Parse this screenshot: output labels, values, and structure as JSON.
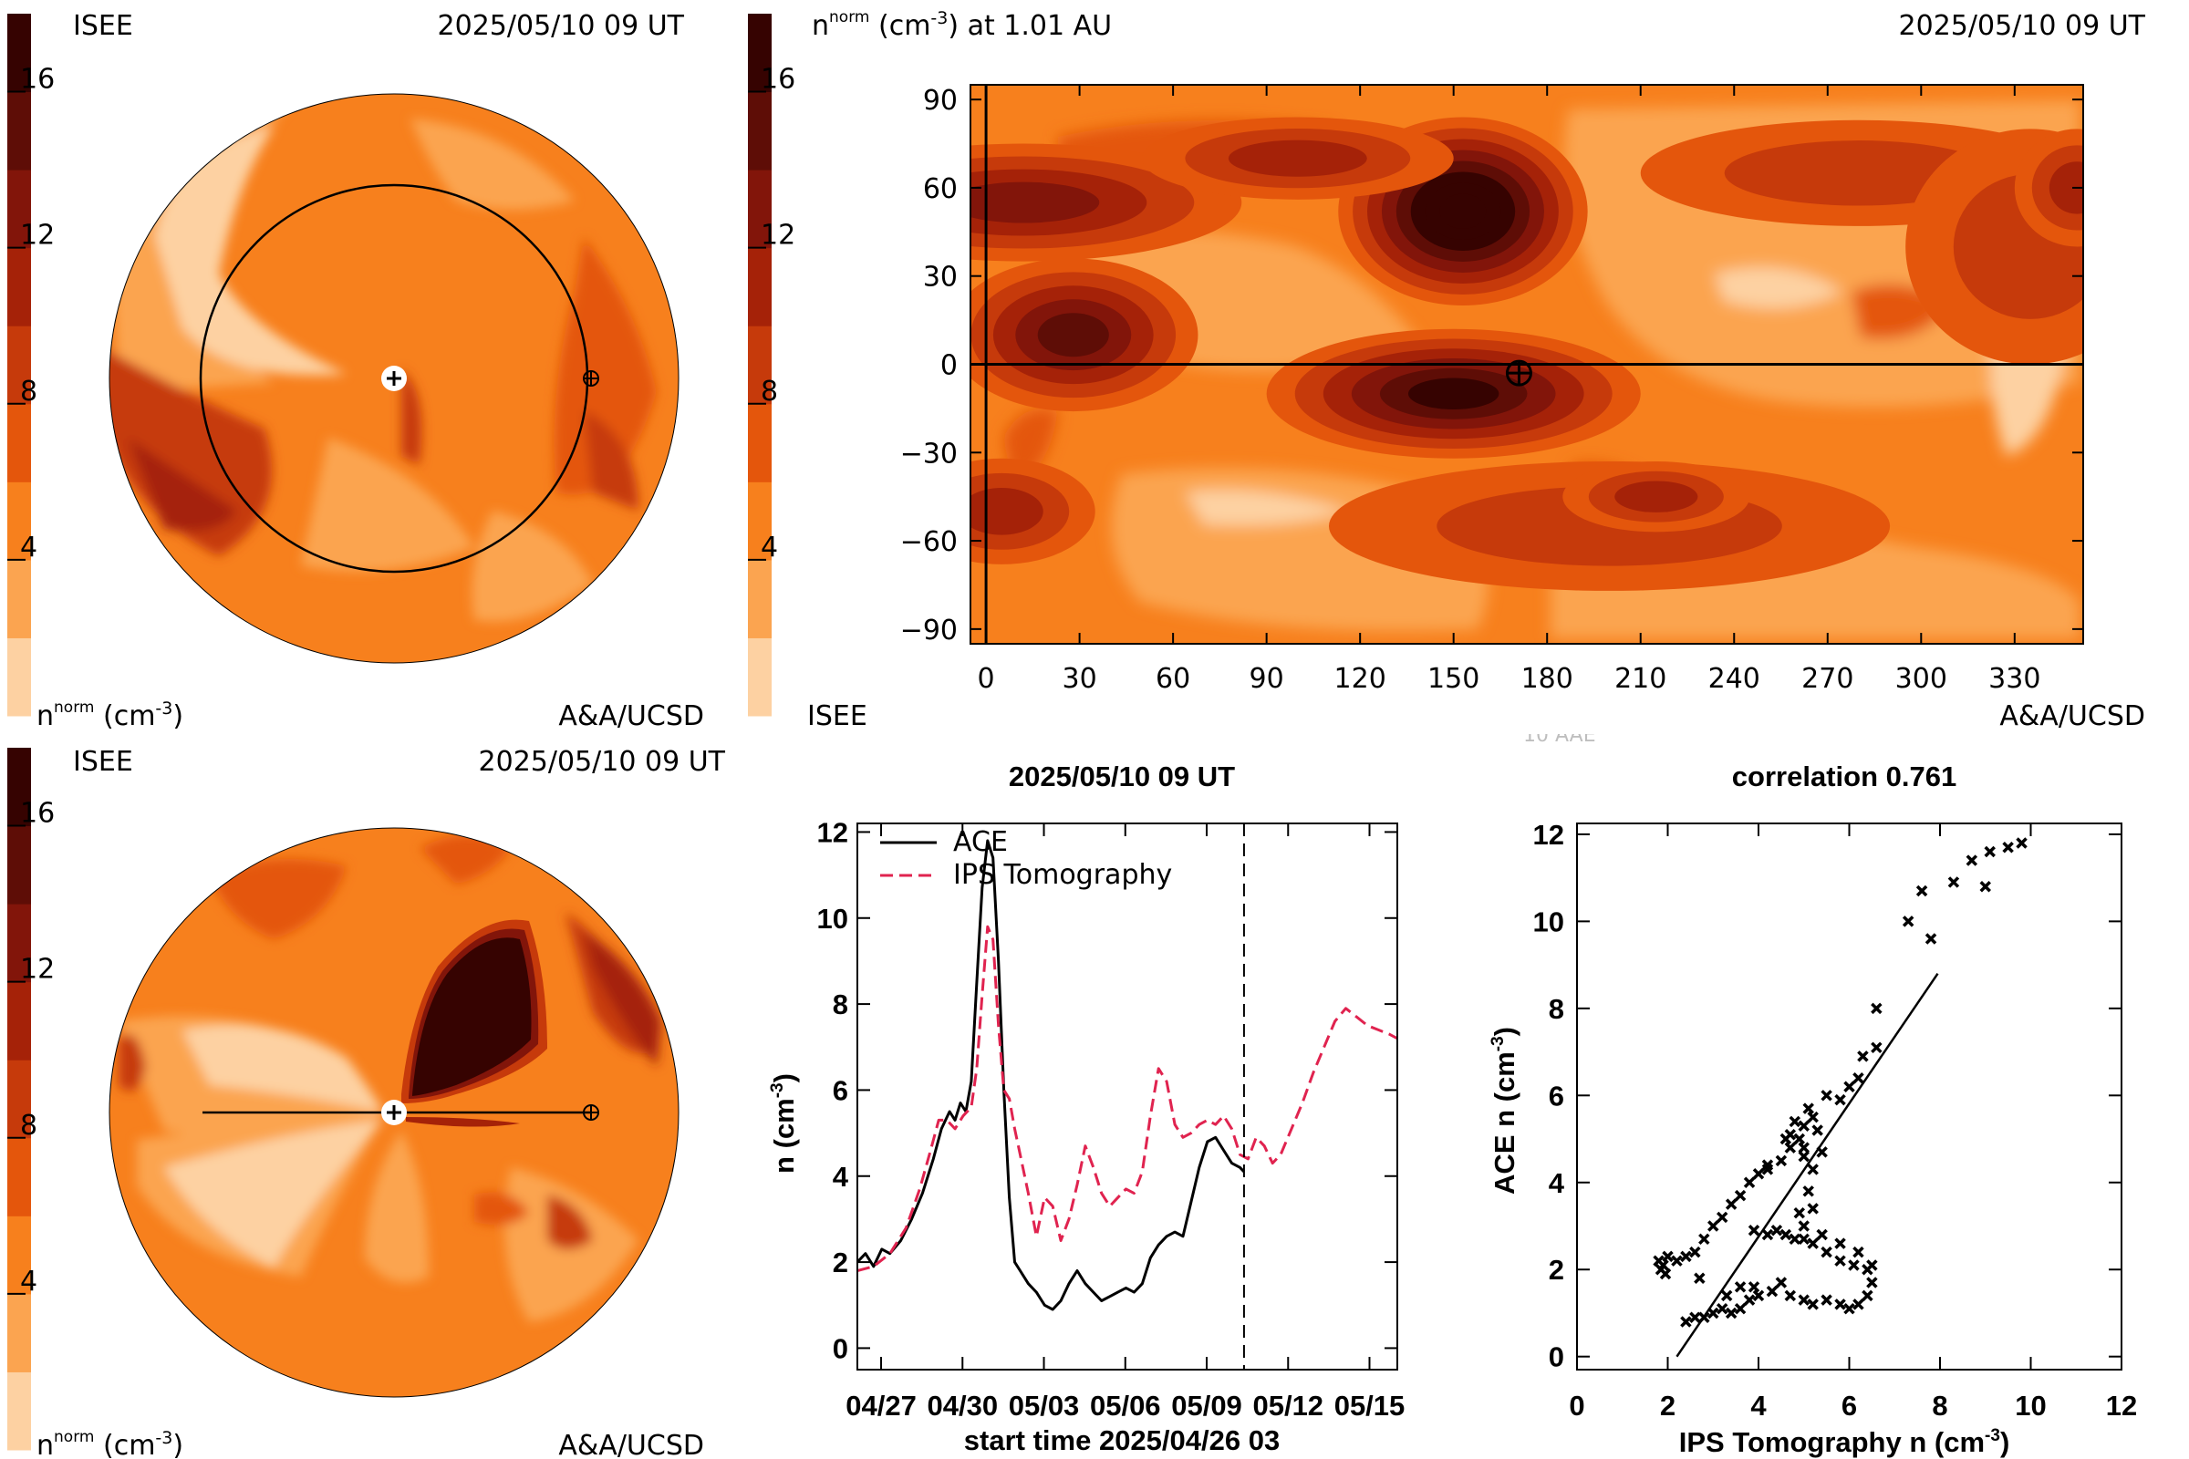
{
  "colorbar_levels": [
    "#fdd1a2",
    "#fba450",
    "#f7801d",
    "#e4560c",
    "#c63a0b",
    "#a52208",
    "#82150a",
    "#5e0d06",
    "#360301"
  ],
  "colorbar_labels": [
    "4",
    "8",
    "12",
    "16"
  ],
  "colorbar_ticks": [
    4,
    8,
    12,
    16
  ],
  "panels": {
    "top_left": {
      "org_left": "ISEE",
      "date": "2025/05/10 09 UT",
      "units_label": "n",
      "units_sup": "norm",
      "units_tail": " (cm",
      "units_exp": "-3",
      "units_close": ")",
      "credit": "A&A/UCSD"
    },
    "top_right": {
      "title": "n",
      "title_sup": "norm",
      "title_mid": " (cm",
      "title_exp": "-3",
      "title_tail": ") at 1.01 AU",
      "date": "2025/05/10 09 UT",
      "org": "ISEE",
      "credit": "A&A/UCSD",
      "partial_text": "10 AAE"
    },
    "bottom_left": {
      "org_left": "ISEE",
      "date": "2025/05/10 09 UT",
      "units_label": "n",
      "units_sup": "norm",
      "units_tail": " (cm",
      "units_exp": "-3",
      "units_close": ")",
      "credit": "A&A/UCSD"
    }
  },
  "chart_data": [
    {
      "type": "heatmap",
      "id": "synoptic-map",
      "xlim": [
        -5,
        352
      ],
      "ylim": [
        -95,
        95
      ],
      "xticks": [
        0,
        30,
        60,
        90,
        120,
        150,
        180,
        210,
        240,
        270,
        300,
        330
      ],
      "yticks": [
        90,
        60,
        30,
        0,
        -30,
        -60,
        -90
      ],
      "ytick_labels": [
        "90",
        "60",
        "30",
        "0",
        "−30",
        "−60",
        "−90"
      ],
      "earth_lon": 171,
      "earth_lat": -3,
      "blobs": [
        {
          "lon": 153,
          "lat": 52,
          "rx": 40,
          "ry": 32,
          "peak": 8
        },
        {
          "lon": 28,
          "lat": 10,
          "rx": 40,
          "ry": 26,
          "peak": 5
        },
        {
          "lon": 150,
          "lat": -10,
          "rx": 60,
          "ry": 22,
          "peak": 6
        },
        {
          "lon": 12,
          "lat": 55,
          "rx": 70,
          "ry": 20,
          "peak": 4
        },
        {
          "lon": 100,
          "lat": 70,
          "rx": 50,
          "ry": 14,
          "peak": 3
        },
        {
          "lon": 280,
          "lat": 65,
          "rx": 70,
          "ry": 18,
          "peak": 2
        },
        {
          "lon": 335,
          "lat": 40,
          "rx": 40,
          "ry": 40,
          "peak": 2
        },
        {
          "lon": 200,
          "lat": -55,
          "rx": 90,
          "ry": 22,
          "peak": 2
        },
        {
          "lon": 5,
          "lat": -50,
          "rx": 30,
          "ry": 18,
          "peak": 3
        },
        {
          "lon": 215,
          "lat": -45,
          "rx": 30,
          "ry": 12,
          "peak": 3
        },
        {
          "lon": 350,
          "lat": 60,
          "rx": 20,
          "ry": 20,
          "peak": 3
        }
      ]
    },
    {
      "type": "line",
      "id": "time-series",
      "title": "2025/05/10 09 UT",
      "xlabel": "start time 2025/04/26 03",
      "ylabel_main": "n (cm",
      "ylabel_exp": "-3",
      "ylabel_close": ")",
      "xlim": [
        0,
        19.9
      ],
      "ylim": [
        -0.5,
        12.2
      ],
      "xtick_pos": [
        0.875,
        3.875,
        6.875,
        9.875,
        12.875,
        15.875,
        18.875
      ],
      "xtick_labels": [
        "04/27",
        "04/30",
        "05/03",
        "05/06",
        "05/09",
        "05/12",
        "05/15"
      ],
      "yticks": [
        0,
        2,
        4,
        6,
        8,
        10,
        12
      ],
      "now_marker": 14.25,
      "series": [
        {
          "name": "ACE",
          "color": "#000000",
          "dash": "",
          "x": [
            0,
            0.3,
            0.6,
            0.9,
            1.2,
            1.6,
            2.0,
            2.4,
            2.8,
            3.1,
            3.4,
            3.6,
            3.8,
            4.0,
            4.2,
            4.4,
            4.6,
            4.8,
            5.0,
            5.2,
            5.4,
            5.6,
            5.8,
            6.0,
            6.3,
            6.6,
            6.9,
            7.2,
            7.5,
            7.8,
            8.1,
            8.4,
            8.7,
            9.0,
            9.3,
            9.6,
            9.9,
            10.2,
            10.5,
            10.8,
            11.1,
            11.4,
            11.7,
            12.0,
            12.3,
            12.6,
            12.9,
            13.2,
            13.5,
            13.8,
            14.1,
            14.25
          ],
          "y": [
            2.0,
            2.2,
            1.9,
            2.3,
            2.2,
            2.5,
            3.0,
            3.6,
            4.4,
            5.1,
            5.5,
            5.3,
            5.7,
            5.5,
            6.2,
            8.5,
            10.7,
            11.8,
            11.4,
            9.0,
            6.0,
            3.5,
            2.0,
            1.8,
            1.5,
            1.3,
            1.0,
            0.9,
            1.1,
            1.5,
            1.8,
            1.5,
            1.3,
            1.1,
            1.2,
            1.3,
            1.4,
            1.3,
            1.5,
            2.1,
            2.4,
            2.6,
            2.7,
            2.6,
            3.4,
            4.2,
            4.8,
            4.9,
            4.6,
            4.3,
            4.2,
            4.1
          ]
        },
        {
          "name": "IPS Tomography",
          "color": "#e0234f",
          "dash": "14,7",
          "x": [
            0,
            0.6,
            1.2,
            1.8,
            2.3,
            2.7,
            3.0,
            3.3,
            3.6,
            3.9,
            4.2,
            4.4,
            4.6,
            4.8,
            5.0,
            5.2,
            5.4,
            5.6,
            5.8,
            6.0,
            6.3,
            6.6,
            6.9,
            7.2,
            7.5,
            7.8,
            8.1,
            8.4,
            8.7,
            9.0,
            9.3,
            9.6,
            9.9,
            10.2,
            10.5,
            10.8,
            11.1,
            11.4,
            11.7,
            12.0,
            12.3,
            12.6,
            12.9,
            13.2,
            13.5,
            13.8,
            14.1,
            14.4,
            14.7,
            15.0,
            15.3,
            15.6,
            16.0,
            16.4,
            16.8,
            17.2,
            17.6,
            18.0,
            18.4,
            18.8,
            19.2,
            19.6,
            19.9
          ],
          "y": [
            1.8,
            1.9,
            2.2,
            2.8,
            3.7,
            4.6,
            5.3,
            5.3,
            5.1,
            5.4,
            5.6,
            6.5,
            8.2,
            9.8,
            9.5,
            7.5,
            6.0,
            5.8,
            5.1,
            4.5,
            3.6,
            2.6,
            3.5,
            3.3,
            2.5,
            3.0,
            3.8,
            4.7,
            4.2,
            3.6,
            3.3,
            3.5,
            3.7,
            3.6,
            4.1,
            5.4,
            6.5,
            6.2,
            5.2,
            4.9,
            5.0,
            5.2,
            5.3,
            5.2,
            5.4,
            5.1,
            4.5,
            4.4,
            4.9,
            4.7,
            4.3,
            4.5,
            5.1,
            5.7,
            6.4,
            7.0,
            7.6,
            7.9,
            7.7,
            7.5,
            7.4,
            7.3,
            7.2
          ]
        }
      ]
    },
    {
      "type": "scatter",
      "id": "correlation",
      "title": "correlation 0.761",
      "xlabel_main": "IPS Tomography n (cm",
      "xlabel_exp": "-3",
      "xlabel_close": ")",
      "ylabel_main": "ACE n (cm",
      "ylabel_exp": "-3",
      "ylabel_close": ")",
      "xlim": [
        0,
        12
      ],
      "ylim": [
        -0.3,
        12.25
      ],
      "xticks": [
        0,
        2,
        4,
        6,
        8,
        10,
        12
      ],
      "yticks": [
        0,
        2,
        4,
        6,
        8,
        10,
        12
      ],
      "fit_line": [
        [
          2.2,
          0
        ],
        [
          7.95,
          8.8
        ]
      ],
      "points": [
        [
          1.8,
          2.2
        ],
        [
          1.9,
          2.1
        ],
        [
          1.85,
          2.0
        ],
        [
          2.0,
          2.3
        ],
        [
          1.95,
          1.9
        ],
        [
          2.2,
          2.2
        ],
        [
          2.4,
          2.3
        ],
        [
          2.6,
          2.4
        ],
        [
          2.8,
          2.7
        ],
        [
          3.0,
          3.0
        ],
        [
          3.2,
          3.2
        ],
        [
          3.4,
          3.5
        ],
        [
          3.6,
          3.7
        ],
        [
          3.8,
          4.0
        ],
        [
          4.0,
          4.2
        ],
        [
          4.2,
          4.3
        ],
        [
          4.5,
          4.5
        ],
        [
          4.7,
          4.8
        ],
        [
          4.9,
          5.0
        ],
        [
          5.0,
          5.3
        ],
        [
          5.2,
          5.5
        ],
        [
          4.8,
          5.4
        ],
        [
          5.1,
          5.7
        ],
        [
          5.3,
          5.2
        ],
        [
          4.7,
          5.1
        ],
        [
          5.0,
          4.6
        ],
        [
          5.4,
          4.7
        ],
        [
          5.2,
          4.3
        ],
        [
          5.1,
          3.8
        ],
        [
          5.2,
          3.4
        ],
        [
          4.9,
          3.3
        ],
        [
          5.0,
          3.0
        ],
        [
          4.8,
          2.7
        ],
        [
          5.2,
          2.6
        ],
        [
          5.5,
          2.4
        ],
        [
          5.8,
          2.2
        ],
        [
          6.1,
          2.1
        ],
        [
          6.4,
          2.0
        ],
        [
          6.5,
          1.7
        ],
        [
          6.4,
          1.4
        ],
        [
          6.2,
          1.2
        ],
        [
          6.0,
          1.1
        ],
        [
          5.8,
          1.2
        ],
        [
          5.5,
          1.3
        ],
        [
          5.2,
          1.2
        ],
        [
          5.0,
          1.3
        ],
        [
          4.7,
          1.4
        ],
        [
          4.5,
          1.7
        ],
        [
          4.3,
          1.5
        ],
        [
          4.0,
          1.4
        ],
        [
          3.8,
          1.3
        ],
        [
          3.6,
          1.1
        ],
        [
          3.4,
          1.0
        ],
        [
          3.2,
          1.1
        ],
        [
          3.0,
          1.0
        ],
        [
          2.8,
          0.9
        ],
        [
          2.6,
          0.9
        ],
        [
          2.4,
          0.8
        ],
        [
          3.3,
          1.4
        ],
        [
          3.6,
          1.6
        ],
        [
          3.9,
          1.6
        ],
        [
          2.7,
          1.8
        ],
        [
          3.9,
          2.9
        ],
        [
          4.2,
          2.8
        ],
        [
          4.4,
          2.9
        ],
        [
          4.6,
          2.8
        ],
        [
          5.0,
          2.7
        ],
        [
          5.4,
          2.8
        ],
        [
          5.8,
          2.6
        ],
        [
          6.2,
          2.4
        ],
        [
          6.5,
          2.1
        ],
        [
          4.2,
          4.4
        ],
        [
          4.6,
          5.0
        ],
        [
          5.0,
          4.8
        ],
        [
          5.5,
          6.0
        ],
        [
          5.8,
          5.9
        ],
        [
          6.0,
          6.2
        ],
        [
          6.2,
          6.4
        ],
        [
          6.3,
          6.9
        ],
        [
          6.6,
          7.1
        ],
        [
          6.6,
          8.0
        ],
        [
          7.3,
          10.0
        ],
        [
          7.6,
          10.7
        ],
        [
          7.8,
          9.6
        ],
        [
          8.3,
          10.9
        ],
        [
          8.7,
          11.4
        ],
        [
          9.1,
          11.6
        ],
        [
          9.0,
          10.8
        ],
        [
          9.5,
          11.7
        ],
        [
          9.8,
          11.8
        ]
      ]
    }
  ]
}
